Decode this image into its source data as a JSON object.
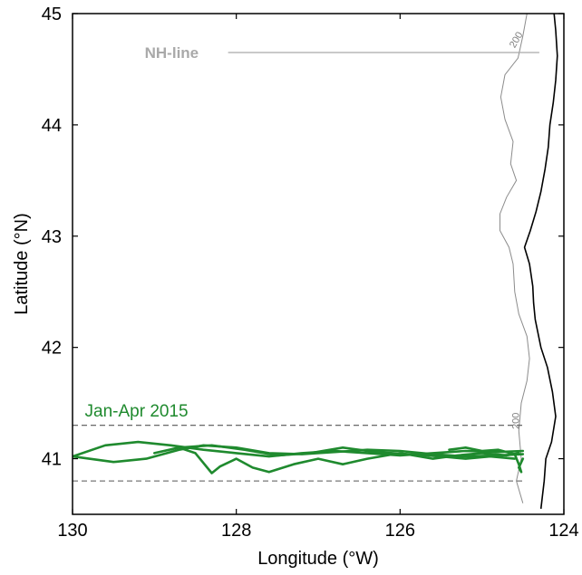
{
  "chart_data": {
    "type": "map",
    "xlabel": "Longitude (°W)",
    "ylabel": "Latitude (°N)",
    "xlim": [
      130,
      124
    ],
    "ylim": [
      40.5,
      45
    ],
    "x_ticks": [
      "130",
      "128",
      "126",
      "124"
    ],
    "y_ticks": [
      "41",
      "42",
      "43",
      "44",
      "45"
    ],
    "grid": false,
    "colors": {
      "track": "#1f8a2e",
      "contour": "#8c8c8c",
      "coast": "#000000",
      "nh_line": "#a9a9a9",
      "dashed": "#555555"
    },
    "annotations": {
      "nh_line_label": "NH-line",
      "contour_label_top": "200",
      "contour_label_bottom": "200",
      "track_label": "Jan-Apr 2015"
    },
    "nh_line": {
      "lon_start": 128.1,
      "lon_end": 124.3,
      "lat": 44.65
    },
    "dashed_lines": [
      {
        "lat": 41.3,
        "lon_start": 130,
        "lon_end": 124.5
      },
      {
        "lat": 40.8,
        "lon_start": 130,
        "lon_end": 124.5
      }
    ],
    "coastline": [
      [
        124.12,
        45.0
      ],
      [
        124.1,
        44.85
      ],
      [
        124.08,
        44.62
      ],
      [
        124.1,
        44.4
      ],
      [
        124.13,
        44.2
      ],
      [
        124.17,
        44.0
      ],
      [
        124.19,
        43.8
      ],
      [
        124.23,
        43.6
      ],
      [
        124.28,
        43.4
      ],
      [
        124.34,
        43.22
      ],
      [
        124.41,
        43.05
      ],
      [
        124.48,
        42.9
      ],
      [
        124.42,
        42.75
      ],
      [
        124.38,
        42.55
      ],
      [
        124.37,
        42.4
      ],
      [
        124.35,
        42.25
      ],
      [
        124.28,
        42.0
      ],
      [
        124.2,
        41.82
      ],
      [
        124.14,
        41.6
      ],
      [
        124.1,
        41.38
      ],
      [
        124.15,
        41.15
      ],
      [
        124.22,
        41.0
      ],
      [
        124.24,
        40.8
      ],
      [
        124.28,
        40.55
      ]
    ],
    "isobath_200m": [
      [
        124.45,
        45.0
      ],
      [
        124.5,
        44.8
      ],
      [
        124.56,
        44.6
      ],
      [
        124.72,
        44.45
      ],
      [
        124.77,
        44.25
      ],
      [
        124.72,
        44.05
      ],
      [
        124.62,
        43.85
      ],
      [
        124.65,
        43.65
      ],
      [
        124.58,
        43.5
      ],
      [
        124.7,
        43.35
      ],
      [
        124.78,
        43.2
      ],
      [
        124.78,
        43.05
      ],
      [
        124.67,
        42.9
      ],
      [
        124.62,
        42.75
      ],
      [
        124.6,
        42.5
      ],
      [
        124.55,
        42.3
      ],
      [
        124.45,
        42.1
      ],
      [
        124.42,
        41.9
      ],
      [
        124.45,
        41.7
      ],
      [
        124.52,
        41.5
      ],
      [
        124.55,
        41.25
      ],
      [
        124.52,
        41.0
      ],
      [
        124.58,
        40.8
      ],
      [
        124.5,
        40.6
      ]
    ],
    "glider_tracks": [
      [
        [
          130.0,
          41.02
        ],
        [
          129.6,
          41.12
        ],
        [
          129.2,
          41.15
        ],
        [
          128.8,
          41.12
        ],
        [
          128.4,
          41.08
        ],
        [
          128.0,
          41.05
        ],
        [
          127.6,
          41.02
        ],
        [
          127.2,
          41.05
        ],
        [
          126.8,
          41.07
        ],
        [
          126.4,
          41.05
        ],
        [
          126.0,
          41.03
        ],
        [
          125.6,
          41.05
        ],
        [
          125.2,
          41.07
        ],
        [
          124.8,
          41.06
        ],
        [
          124.5,
          41.07
        ]
      ],
      [
        [
          130.0,
          41.02
        ],
        [
          129.5,
          40.97
        ],
        [
          129.1,
          41.0
        ],
        [
          128.7,
          41.08
        ],
        [
          128.4,
          41.12
        ],
        [
          128.0,
          41.1
        ],
        [
          127.6,
          41.05
        ],
        [
          127.2,
          41.04
        ],
        [
          126.8,
          41.06
        ],
        [
          126.4,
          41.08
        ],
        [
          126.0,
          41.07
        ],
        [
          125.6,
          41.04
        ],
        [
          125.2,
          41.02
        ],
        [
          124.8,
          41.03
        ],
        [
          124.5,
          41.04
        ]
      ],
      [
        [
          129.0,
          41.05
        ],
        [
          128.7,
          41.1
        ],
        [
          128.5,
          41.05
        ],
        [
          128.3,
          40.87
        ],
        [
          128.2,
          40.93
        ],
        [
          128.0,
          41.0
        ],
        [
          127.8,
          40.92
        ],
        [
          127.6,
          40.88
        ],
        [
          127.3,
          40.95
        ],
        [
          127.0,
          41.0
        ],
        [
          126.7,
          40.95
        ],
        [
          126.4,
          41.0
        ],
        [
          126.0,
          41.05
        ],
        [
          125.6,
          41.0
        ],
        [
          125.3,
          41.03
        ],
        [
          125.0,
          41.05
        ],
        [
          124.7,
          41.03
        ],
        [
          124.55,
          41.05
        ]
      ],
      [
        [
          128.7,
          41.1
        ],
        [
          128.3,
          41.12
        ],
        [
          127.9,
          41.08
        ],
        [
          127.5,
          41.03
        ],
        [
          127.1,
          41.05
        ],
        [
          126.7,
          41.1
        ],
        [
          126.3,
          41.06
        ],
        [
          125.9,
          41.04
        ],
        [
          125.5,
          41.02
        ],
        [
          125.2,
          41.0
        ],
        [
          124.9,
          41.02
        ],
        [
          124.6,
          41.0
        ]
      ],
      [
        [
          125.4,
          41.08
        ],
        [
          125.2,
          41.1
        ],
        [
          125.0,
          41.07
        ],
        [
          124.8,
          41.08
        ],
        [
          124.6,
          41.04
        ],
        [
          124.55,
          40.95
        ],
        [
          124.52,
          40.88
        ],
        [
          124.55,
          40.92
        ],
        [
          124.5,
          41.0
        ]
      ]
    ]
  }
}
